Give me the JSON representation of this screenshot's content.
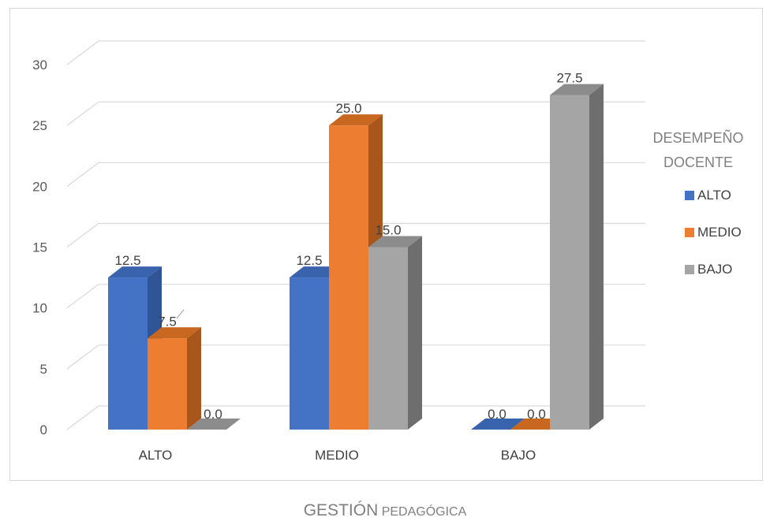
{
  "chart_data": {
    "type": "bar",
    "categories": [
      "ALTO",
      "MEDIO",
      "BAJO"
    ],
    "series": [
      {
        "name": "ALTO",
        "values": [
          12.5,
          12.5,
          0.0
        ],
        "color": "#4472c4",
        "side_color": "#2f5597",
        "top_color": "#3a63ad"
      },
      {
        "name": "MEDIO",
        "values": [
          7.5,
          25.0,
          0.0
        ],
        "color": "#ed7d31",
        "side_color": "#a9561c",
        "top_color": "#c86720"
      },
      {
        "name": "BAJO",
        "values": [
          0.0,
          15.0,
          27.5
        ],
        "color": "#a5a5a5",
        "side_color": "#6e6e6e",
        "top_color": "#8c8c8c"
      }
    ],
    "value_labels": [
      [
        "12.5",
        "12.5",
        "0.0"
      ],
      [
        "7.5",
        "25.0",
        "0.0"
      ],
      [
        "0.0",
        "15.0",
        "27.5"
      ]
    ],
    "y_ticks": [
      "0",
      "5",
      "10",
      "15",
      "20",
      "25",
      "30"
    ],
    "ylim": [
      0,
      30
    ],
    "legend_title": "DESEMPEÑO DOCENTE",
    "legend_position": "right",
    "grid": true,
    "style": "3d-clustered-column"
  },
  "caption": {
    "part1": "GESTIÓN",
    "part2": "PEDAGÓGICA"
  }
}
